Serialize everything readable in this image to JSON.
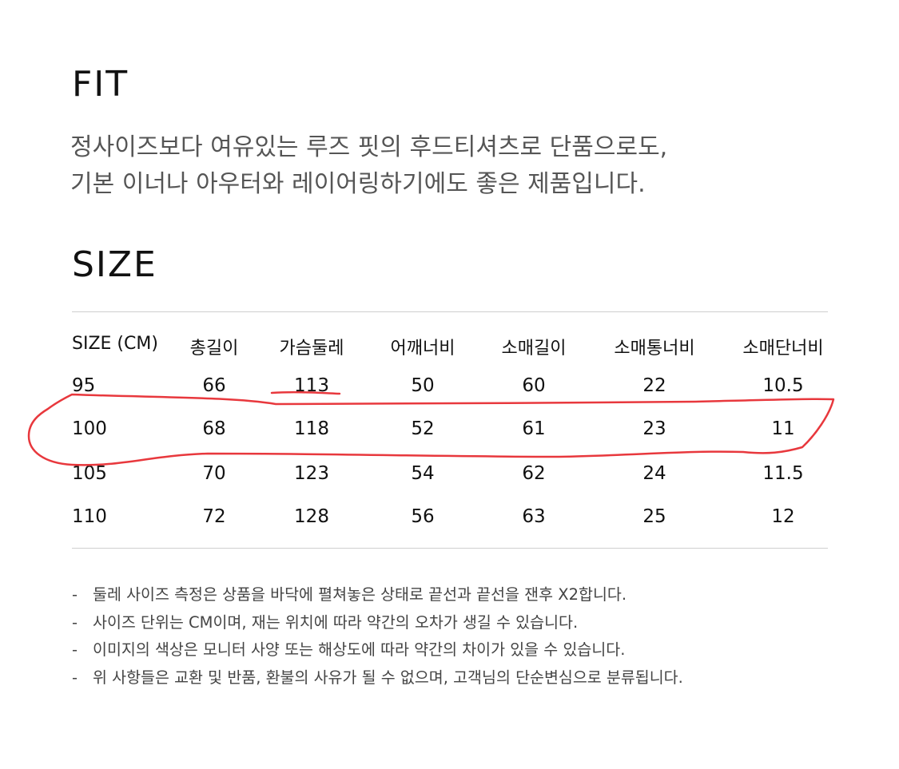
{
  "fit": {
    "title": "FIT",
    "description_lines": [
      "정사이즈보다 여유있는 루즈 핏의 후드티셔츠로 단품으로도,",
      "기본 이너나 아우터와 레이어링하기에도 좋은 제품입니다."
    ]
  },
  "size": {
    "title": "SIZE",
    "headers": [
      "SIZE (CM)",
      "총길이",
      "가슴둘레",
      "어깨너비",
      "소매길이",
      "소매통너비",
      "소매단너비"
    ],
    "rows": [
      [
        "95",
        "66",
        "113",
        "50",
        "60",
        "22",
        "10.5"
      ],
      [
        "100",
        "68",
        "118",
        "52",
        "61",
        "23",
        "11"
      ],
      [
        "105",
        "70",
        "123",
        "54",
        "62",
        "24",
        "11.5"
      ],
      [
        "110",
        "72",
        "128",
        "56",
        "63",
        "25",
        "12"
      ]
    ]
  },
  "notes": {
    "bullet": "-",
    "items": [
      "둘레 사이즈 측정은 상품을 바닥에 펼쳐놓은 상태로 끝선과 끝선을 잰후 X2합니다.",
      "사이즈 단위는 CM이며, 재는 위치에 따라 약간의 오차가 생길 수 있습니다.",
      "이미지의 색상은 모니터 사양 또는 해상도에 따라 약간의 차이가 있을 수 있습니다.",
      "위 사항들은 교환 및 반품, 환불의 사유가 될 수 없으며, 고객님의 단순변심으로 분류됩니다."
    ]
  },
  "annotation": {
    "color": "#e8383d",
    "highlighted_row": "100"
  }
}
